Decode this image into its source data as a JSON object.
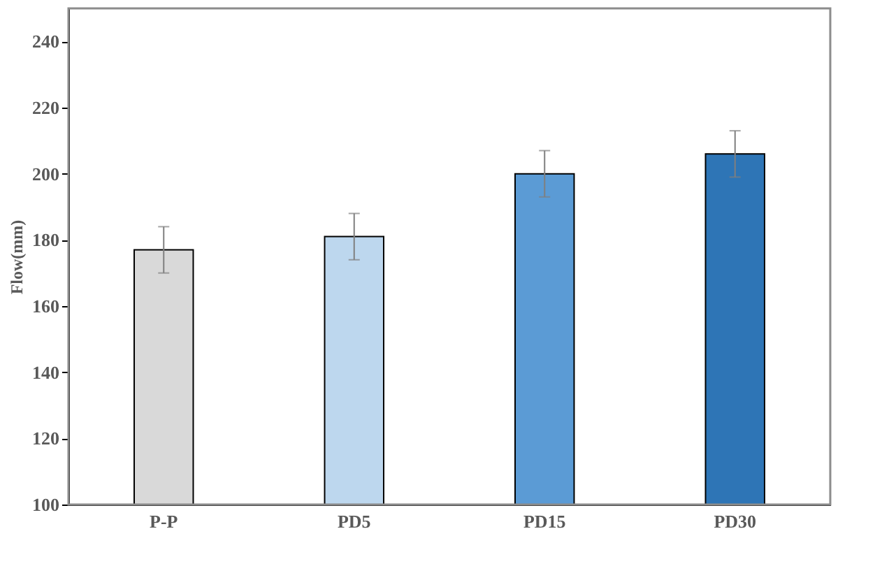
{
  "chart_data": {
    "type": "bar",
    "ylabel": "Flow(mm)",
    "categories": [
      "P-P",
      "PD5",
      "PD15",
      "PD30"
    ],
    "values": [
      177,
      181,
      200,
      206
    ],
    "colors": [
      "#d9d9d9",
      "#bdd7ee",
      "#5b9bd5",
      "#2e75b6"
    ],
    "errors": [
      7,
      7,
      7,
      7
    ],
    "ylim": [
      100,
      250
    ],
    "yticks": [
      100,
      120,
      140,
      160,
      180,
      200,
      220,
      240
    ],
    "grid": false
  }
}
